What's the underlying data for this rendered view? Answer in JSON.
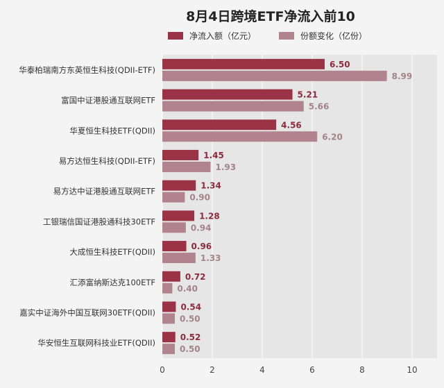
{
  "colors": {
    "net_inflow": "#9b3346",
    "share_change": "#b1838e",
    "plot_bg": "#e6e6e6"
  },
  "chart_data": {
    "type": "bar",
    "orientation": "horizontal",
    "title": "8月4日跨境ETF净流入前10",
    "categories": [
      "华泰柏瑞南方东英恒生科技(QDII-ETF)",
      "富国中证港股通互联网ETF",
      "华夏恒生科技ETF(QDII)",
      "易方达恒生科技(QDII-ETF)",
      "易方达中证港股通互联网ETF",
      "工银瑞信国证港股通科技30ETF",
      "大成恒生科技ETF(QDII)",
      "汇添富纳斯达克100ETF",
      "嘉实中证海外中国互联网30ETF(QDII)",
      "华安恒生互联网科技业ETF(QDII)"
    ],
    "series": [
      {
        "name": "净流入额（亿元）",
        "values": [
          6.5,
          5.21,
          4.56,
          1.45,
          1.34,
          1.28,
          0.96,
          0.72,
          0.54,
          0.52
        ]
      },
      {
        "name": "份额变化（亿份）",
        "values": [
          8.99,
          5.66,
          6.2,
          1.93,
          0.9,
          0.94,
          1.33,
          0.4,
          0.5,
          0.5
        ]
      }
    ],
    "xlim": [
      0,
      11
    ],
    "xticks": [
      0,
      2,
      4,
      6,
      8,
      10
    ],
    "legend_position": "top",
    "grid": true,
    "data_labels_decimals": 2
  }
}
